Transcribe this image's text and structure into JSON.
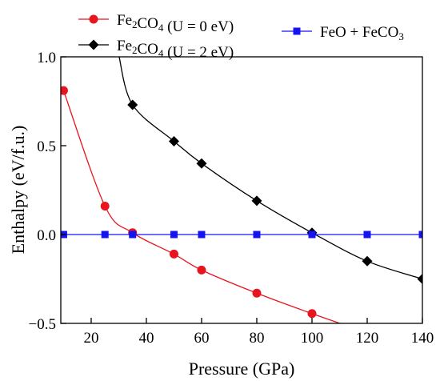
{
  "chart_data": {
    "type": "line",
    "xlabel": "Pressure (GPa)",
    "ylabel": "Enthalpy (eV/f.u.)",
    "xlim": [
      9,
      140
    ],
    "ylim": [
      -0.5,
      1.0
    ],
    "xticks": [
      20,
      40,
      60,
      80,
      100,
      120,
      140
    ],
    "xtick_labels": [
      "20",
      "40",
      "60",
      "80",
      "100",
      "120",
      "140"
    ],
    "yticks": [
      -0.5,
      0.0,
      0.5,
      1.0
    ],
    "ytick_labels": [
      "−0.5",
      "0.0",
      "0.5",
      "1.0"
    ],
    "grid": false,
    "legend_placement": "top",
    "series": [
      {
        "name_main": "Fe",
        "name_sub1": "2",
        "name_mid": "CO",
        "name_sub2": "4",
        "name_suffix": " (U = 0 eV)",
        "color": "#e8141e",
        "marker": "circle",
        "points": [
          {
            "x": 10,
            "y": 0.81
          },
          {
            "x": 25,
            "y": 0.16
          },
          {
            "x": 35,
            "y": 0.01
          },
          {
            "x": 50,
            "y": -0.11
          },
          {
            "x": 60,
            "y": -0.2
          },
          {
            "x": 80,
            "y": -0.33
          },
          {
            "x": 100,
            "y": -0.445
          }
        ],
        "curve_end": {
          "x": 112,
          "y": -0.51
        }
      },
      {
        "name_main": "Fe",
        "name_sub1": "2",
        "name_mid": "CO",
        "name_sub2": "4",
        "name_suffix": " (U = 2 eV)",
        "color": "#000000",
        "marker": "diamond",
        "curve_start": {
          "x": 30,
          "y": 1.01
        },
        "points": [
          {
            "x": 35,
            "y": 0.73
          },
          {
            "x": 50,
            "y": 0.525
          },
          {
            "x": 60,
            "y": 0.4
          },
          {
            "x": 80,
            "y": 0.19
          },
          {
            "x": 100,
            "y": 0.01
          },
          {
            "x": 120,
            "y": -0.15
          },
          {
            "x": 140,
            "y": -0.25
          }
        ]
      },
      {
        "name_main": "FeO + FeCO",
        "name_sub1": "3",
        "name_mid": "",
        "name_sub2": "",
        "name_suffix": "",
        "color": "#1414f0",
        "marker": "square",
        "points": [
          {
            "x": 10,
            "y": 0
          },
          {
            "x": 25,
            "y": 0
          },
          {
            "x": 35,
            "y": 0
          },
          {
            "x": 50,
            "y": 0
          },
          {
            "x": 60,
            "y": 0
          },
          {
            "x": 80,
            "y": 0
          },
          {
            "x": 100,
            "y": 0
          },
          {
            "x": 120,
            "y": 0
          },
          {
            "x": 140,
            "y": 0
          }
        ]
      }
    ]
  }
}
